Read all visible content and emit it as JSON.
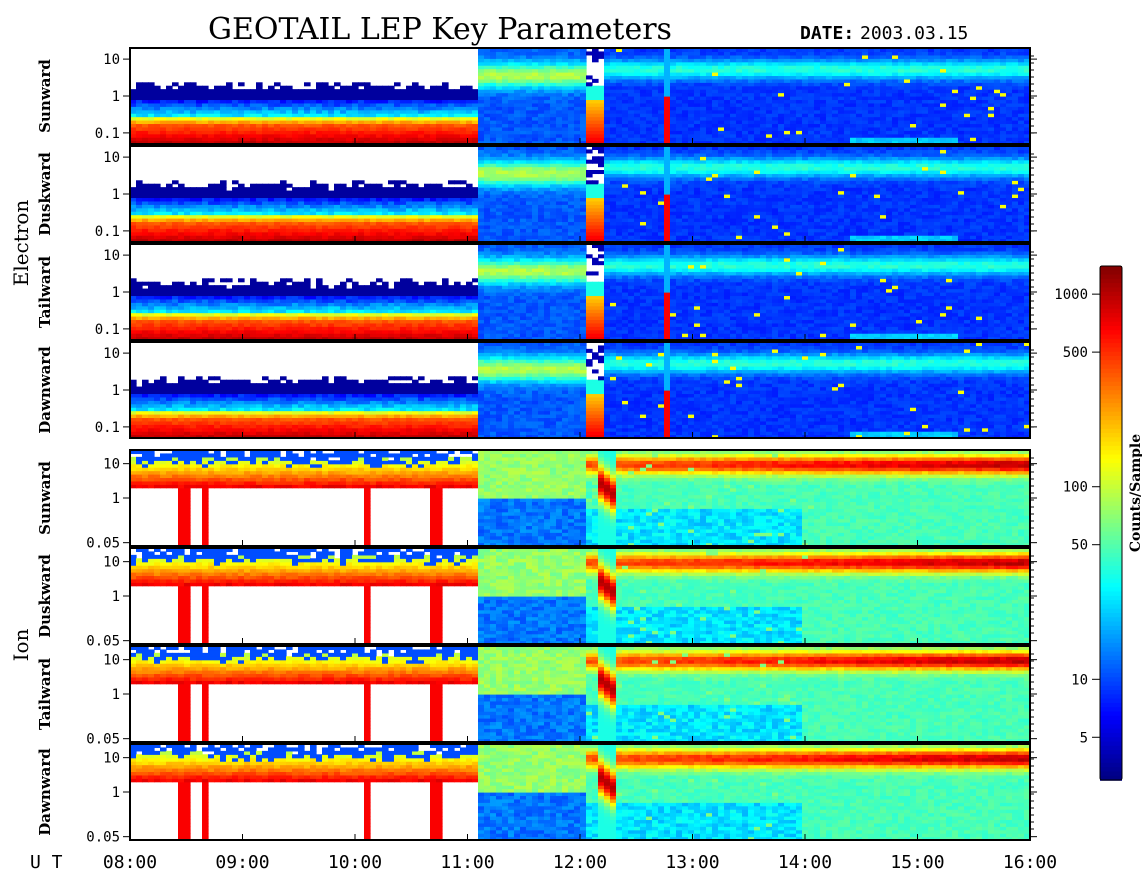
{
  "title": "GEOTAIL LEP Key Parameters",
  "date_label": "DATE:",
  "date_value": "2003.03.15",
  "groups": [
    {
      "name": "Electron",
      "y_ticks": [
        "10",
        "1",
        "0.1"
      ],
      "panels": [
        "Sunward",
        "Duskward",
        "Tailward",
        "Dawnward"
      ]
    },
    {
      "name": "Ion",
      "y_ticks": [
        "10",
        "1",
        "0.05"
      ],
      "panels": [
        "Sunward",
        "Duskward",
        "Tailward",
        "Dawnward"
      ]
    }
  ],
  "x_axis": {
    "label": "U T",
    "ticks": [
      "08:00",
      "09:00",
      "10:00",
      "11:00",
      "12:00",
      "13:00",
      "14:00",
      "15:00",
      "16:00"
    ]
  },
  "colorbar": {
    "label": "Counts/Sample",
    "ticks": [
      "1000",
      "500",
      "100",
      "50",
      "10",
      "5"
    ]
  },
  "chart_data": {
    "type": "heatmap",
    "title": "GEOTAIL LEP Key Parameters",
    "date": "2003.03.15",
    "x": {
      "label": "U T",
      "range": [
        "08:00",
        "16:00"
      ],
      "ticks": [
        "08:00",
        "09:00",
        "10:00",
        "11:00",
        "12:00",
        "13:00",
        "14:00",
        "15:00",
        "16:00"
      ]
    },
    "y_scale": "log",
    "electron_panels": {
      "names": [
        "Sunward",
        "Duskward",
        "Tailward",
        "Dawnward"
      ],
      "y_ticks": [
        10,
        1,
        0.1
      ],
      "description_by_interval": [
        {
          "from": "08:00",
          "to": "11:05",
          "pattern": "intense red/orange band at low energies (~0.05-0.3), sparse counts above ~1"
        },
        {
          "from": "11:05",
          "to": "12:20",
          "pattern": "broad cyan/green enhancement around 2-10, dark blue elsewhere"
        },
        {
          "from": "12:20",
          "to": "12:35",
          "pattern": "red/orange band at low energies"
        },
        {
          "from": "12:35",
          "to": "16:00",
          "pattern": "blue background with cyan band near 5-20, intermittent yellow spikes"
        }
      ]
    },
    "ion_panels": {
      "names": [
        "Sunward",
        "Duskward",
        "Tailward",
        "Dawnward"
      ],
      "y_ticks": [
        10,
        1,
        0.05
      ],
      "description_by_interval": [
        {
          "from": "08:00",
          "to": "11:05",
          "pattern": "red/yellow band near 5-10, no counts below ~4 except narrow spikes"
        },
        {
          "from": "11:05",
          "to": "12:20",
          "pattern": "green above ~3, blue below"
        },
        {
          "from": "12:20",
          "to": "12:35",
          "pattern": "red/orange arc spanning ~1-20"
        },
        {
          "from": "12:35",
          "to": "16:00",
          "pattern": "green/cyan broad distribution, yellow-orange band near 10-20 increasing toward 16:00"
        }
      ]
    },
    "colorbar": {
      "label": "Counts/Sample",
      "scale": "log",
      "range": [
        3,
        1400
      ],
      "ticks": [
        1000,
        500,
        100,
        50,
        10,
        5
      ]
    }
  }
}
